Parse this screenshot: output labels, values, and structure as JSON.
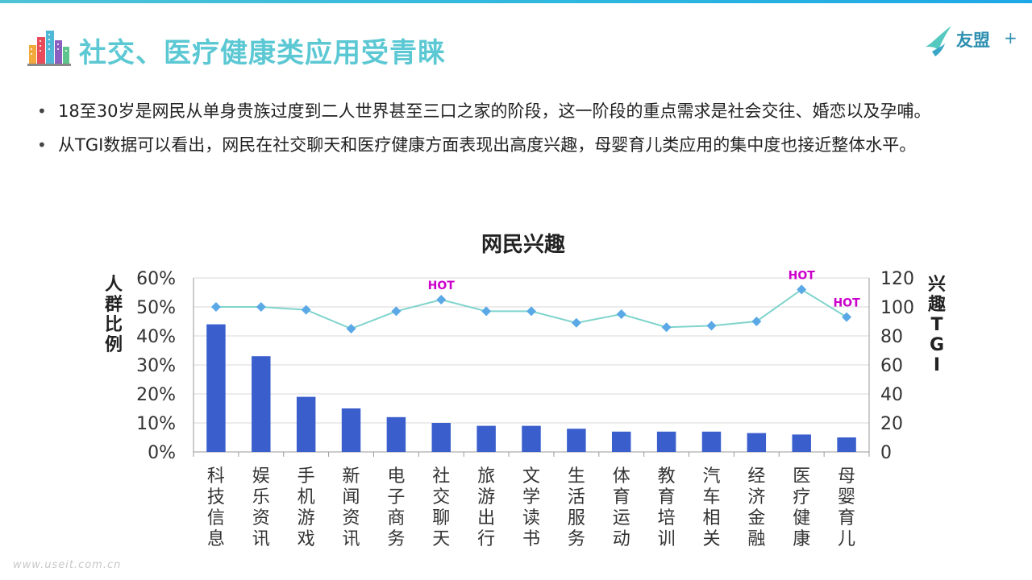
{
  "page": {
    "title": "社交、医疗健康类应用受青睐",
    "logo_text": "友盟",
    "logo_plus": "+",
    "watermark": "www.useit.com.cn",
    "bullets": [
      "18至30岁是网民从单身贵族过度到二人世界甚至三口之家的阶段，这一阶段的重点需求是社会交往、婚恋以及孕哺。",
      "从TGI数据可以看出，网民在社交聊天和医疗健康方面表现出高度兴趣，母婴育儿类应用的集中度也接近整体水平。"
    ]
  },
  "colors": {
    "title": "#5bc8d3",
    "bar": "#3a5fcd",
    "line": "#7fd4cc",
    "marker": "#5aa9e6",
    "hot": "#cc00cc",
    "grid": "#d9d9d9"
  },
  "chart_data": {
    "type": "bar+line",
    "title": "网民兴趣",
    "ylabel_left": "人群比例",
    "ylabel_right": "兴趣TGI",
    "categories": [
      "科技信息",
      "娱乐资讯",
      "手机游戏",
      "新闻资讯",
      "电子商务",
      "社交聊天",
      "旅游出行",
      "文学读书",
      "生活服务",
      "体育运动",
      "教育培训",
      "汽车相关",
      "经济金融",
      "医疗健康",
      "母婴育儿"
    ],
    "bar_series": {
      "axis": "left",
      "values": [
        0.44,
        0.33,
        0.19,
        0.15,
        0.12,
        0.1,
        0.09,
        0.09,
        0.08,
        0.07,
        0.07,
        0.07,
        0.065,
        0.06,
        0.05
      ]
    },
    "line_series": {
      "axis": "right",
      "values": [
        100,
        100,
        98,
        85,
        97,
        105,
        97,
        97,
        89,
        95,
        86,
        87,
        90,
        112,
        93
      ]
    },
    "y_left": {
      "min": 0,
      "max": 0.6,
      "ticks": [
        "0%",
        "10%",
        "20%",
        "30%",
        "40%",
        "50%",
        "60%"
      ]
    },
    "y_right": {
      "min": 0,
      "max": 120,
      "ticks": [
        "0",
        "20",
        "40",
        "60",
        "80",
        "100",
        "120"
      ]
    },
    "grid": true,
    "annotations": [
      {
        "category": "社交聊天",
        "text": "HOT"
      },
      {
        "category": "医疗健康",
        "text": "HOT"
      },
      {
        "category": "母婴育儿",
        "text": "HOT"
      }
    ]
  }
}
